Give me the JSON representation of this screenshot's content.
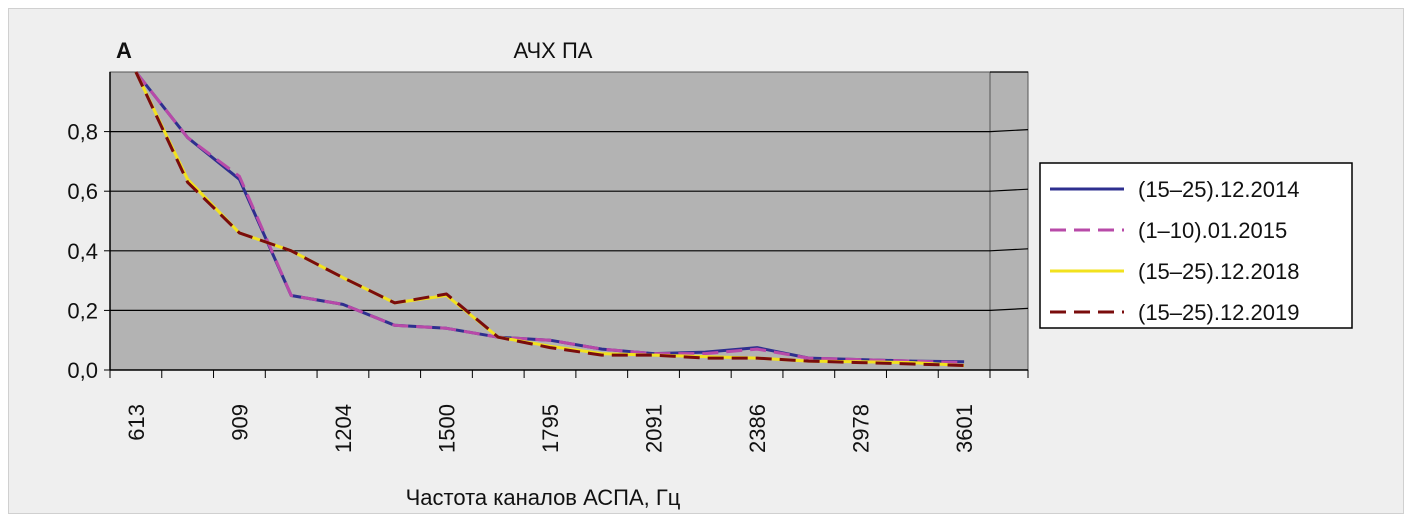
{
  "chart_data": {
    "type": "line",
    "title": "АЧХ ПА",
    "y_axis_label": "A",
    "xlabel": "Частота каналов АСПА, Гц",
    "x_tick_labels": [
      "613",
      "909",
      "1204",
      "1500",
      "1795",
      "2091",
      "2386",
      "2978",
      "3601"
    ],
    "x_index": [
      1,
      2,
      3,
      4,
      5,
      6,
      7,
      8,
      9,
      10,
      11,
      12,
      13,
      14,
      15,
      16,
      17
    ],
    "y_tick_labels": [
      "0,0",
      "0,2",
      "0,4",
      "0,6",
      "0,8"
    ],
    "ylim": [
      0,
      1
    ],
    "grid": true,
    "legend_position": "right",
    "series": [
      {
        "name": "(15–25).12.2014",
        "color": "#2e2f8f",
        "dash": "solid",
        "values": [
          1.0,
          0.78,
          0.64,
          0.25,
          0.22,
          0.15,
          0.14,
          0.11,
          0.1,
          0.07,
          0.055,
          0.06,
          0.075,
          0.04,
          0.035,
          0.03,
          0.028
        ]
      },
      {
        "name": "(1–10).01.2015",
        "color": "#b84aa8",
        "dash": "dashed",
        "values": [
          1.0,
          0.78,
          0.65,
          0.25,
          0.22,
          0.15,
          0.14,
          0.11,
          0.1,
          0.07,
          0.055,
          0.055,
          0.07,
          0.04,
          0.035,
          0.03,
          0.025
        ]
      },
      {
        "name": "(15–25).12.2018",
        "color": "#f2e21e",
        "dash": "solid",
        "values": [
          1.0,
          0.64,
          0.46,
          0.4,
          0.31,
          0.225,
          0.25,
          0.11,
          0.08,
          0.055,
          0.05,
          0.045,
          0.04,
          0.03,
          0.028,
          0.025,
          0.015
        ]
      },
      {
        "name": "(15–25).12.2019",
        "color": "#7a0c0c",
        "dash": "dashed",
        "values": [
          1.0,
          0.63,
          0.46,
          0.4,
          0.31,
          0.225,
          0.255,
          0.11,
          0.075,
          0.05,
          0.05,
          0.04,
          0.04,
          0.03,
          0.025,
          0.02,
          0.015
        ]
      }
    ]
  }
}
